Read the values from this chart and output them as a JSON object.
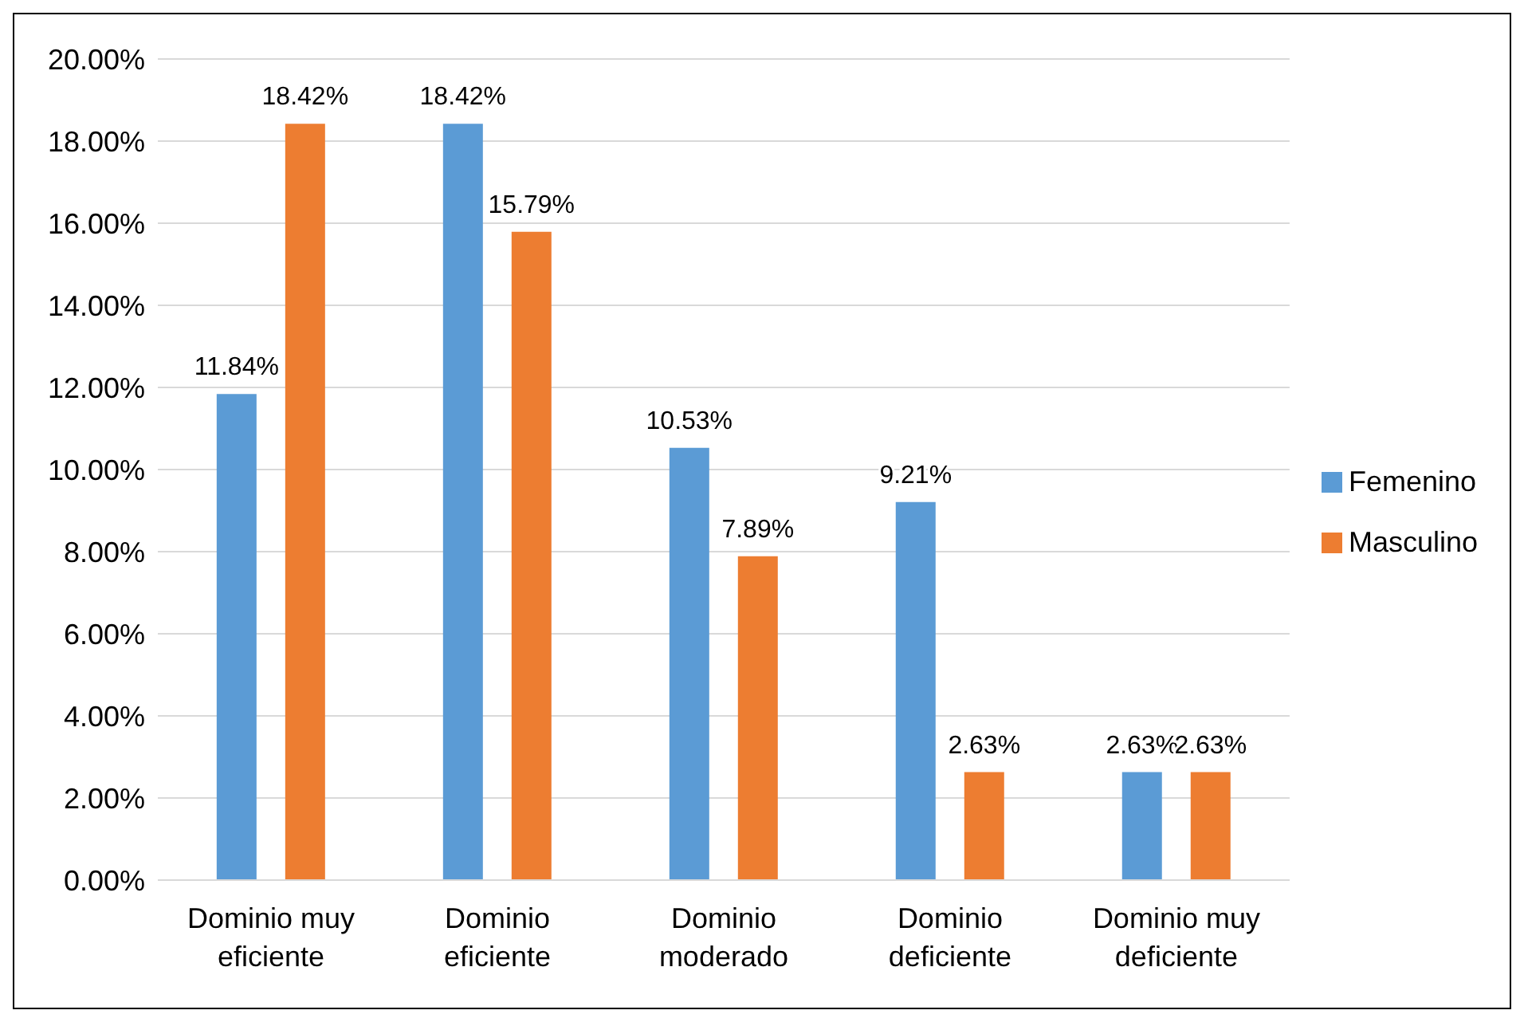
{
  "chart_data": {
    "type": "bar",
    "categories": [
      "Dominio muy eficiente",
      "Dominio eficiente",
      "Dominio moderado",
      "Dominio deficiente",
      "Dominio muy deficiente"
    ],
    "series": [
      {
        "name": "Femenino",
        "color": "#5b9bd5",
        "values": [
          11.84,
          18.42,
          10.53,
          9.21,
          2.63
        ],
        "value_labels": [
          "11.84%",
          "18.42%",
          "10.53%",
          "9.21%",
          "2.63%"
        ]
      },
      {
        "name": "Masculino",
        "color": "#ed7d31",
        "values": [
          18.42,
          15.79,
          7.89,
          2.63,
          2.63
        ],
        "value_labels": [
          "18.42%",
          "15.79%",
          "7.89%",
          "2.63%",
          "2.63%"
        ]
      }
    ],
    "ylim": [
      0,
      20
    ],
    "yticks": [
      {
        "value": 0,
        "label": "0.00%"
      },
      {
        "value": 2,
        "label": "2.00%"
      },
      {
        "value": 4,
        "label": "4.00%"
      },
      {
        "value": 6,
        "label": "6.00%"
      },
      {
        "value": 8,
        "label": "8.00%"
      },
      {
        "value": 10,
        "label": "10.00%"
      },
      {
        "value": 12,
        "label": "12.00%"
      },
      {
        "value": 14,
        "label": "14.00%"
      },
      {
        "value": 16,
        "label": "16.00%"
      },
      {
        "value": 18,
        "label": "18.00%"
      },
      {
        "value": 20,
        "label": "20.00%"
      }
    ],
    "grid": "y",
    "legend": "right"
  }
}
